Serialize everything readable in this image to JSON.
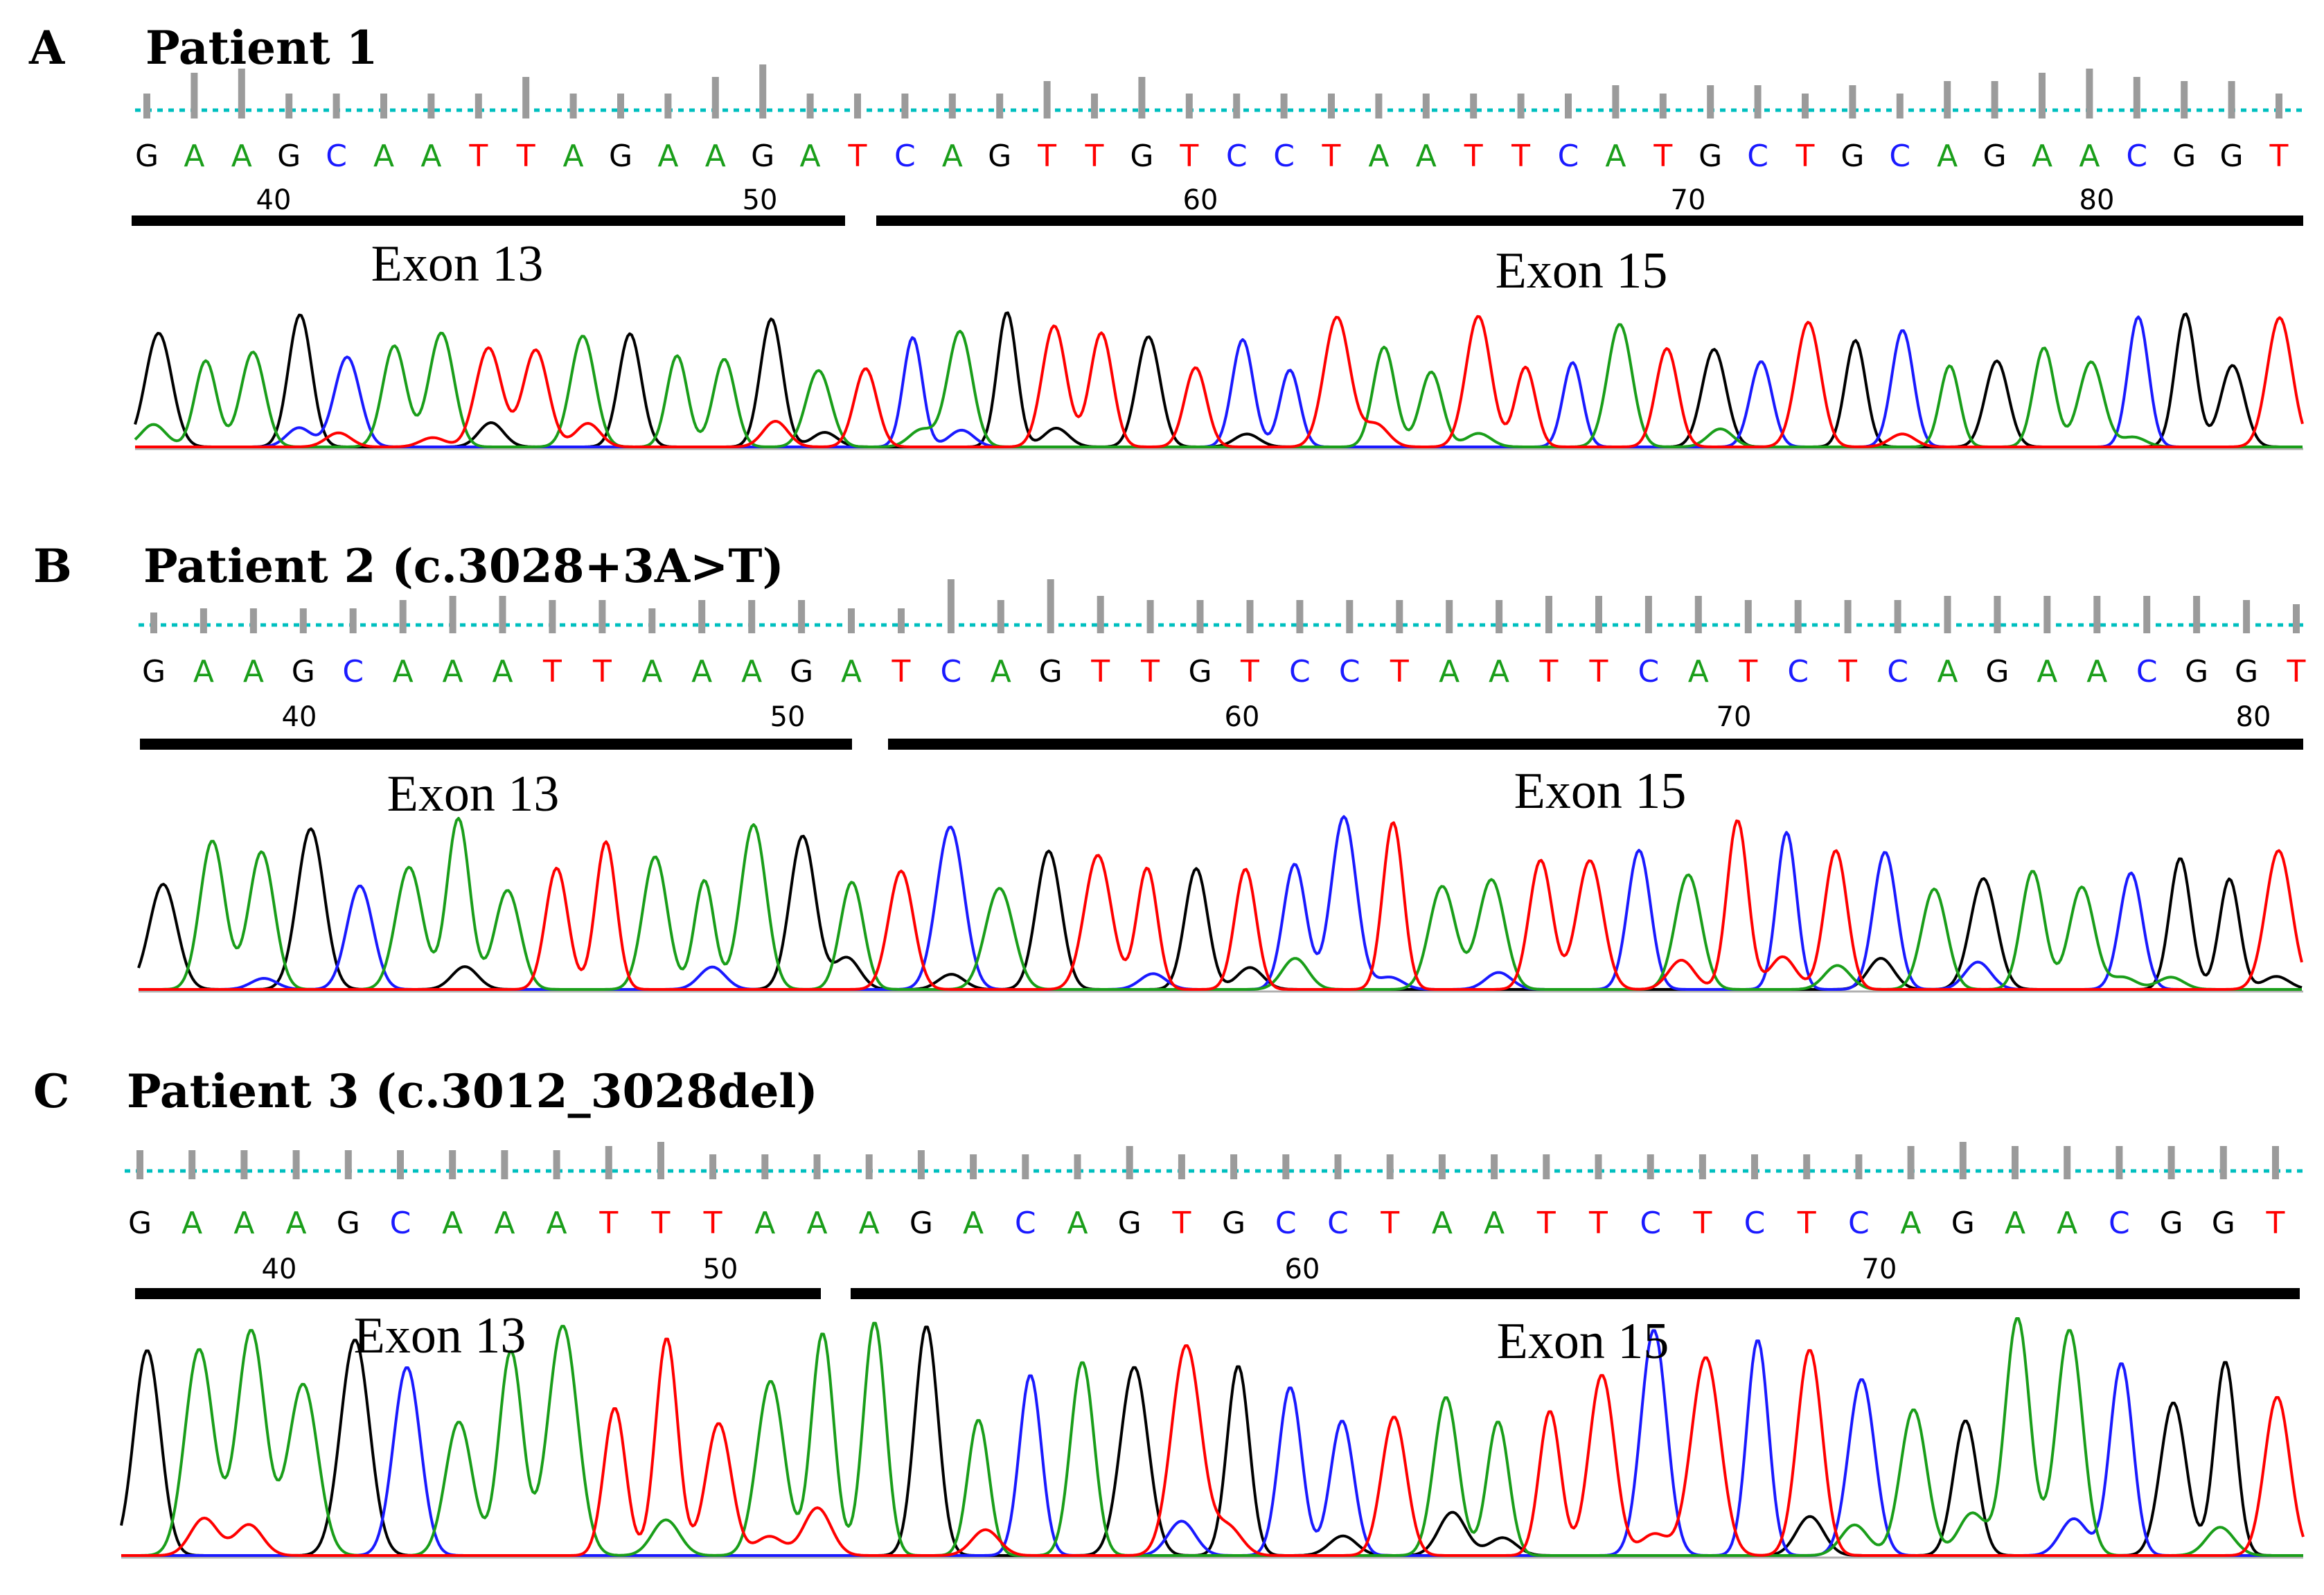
{
  "colors": {
    "A": "#1a9e1a",
    "C": "#1a1aff",
    "G": "#000000",
    "T": "#ff0000",
    "baseline": "#00bfbf",
    "quality": "#9b9b9b",
    "exon_bar": "#000000"
  },
  "panels": [
    {
      "letter": "A",
      "title": "Patient 1",
      "sequence": "GAAGCAATTAGAAGATCAGTTGTCCTAATTCATGCTGCAGAACGGT",
      "position_labels": [
        "40",
        "50",
        "60",
        "70",
        "80"
      ],
      "exons": [
        {
          "label": "Exon 13"
        },
        {
          "label": "Exon 15"
        }
      ],
      "quality": [
        0.3,
        0.8,
        0.9,
        0.3,
        0.3,
        0.3,
        0.3,
        0.3,
        0.7,
        0.3,
        0.3,
        0.3,
        0.7,
        1.0,
        0.3,
        0.3,
        0.3,
        0.3,
        0.3,
        0.6,
        0.3,
        0.7,
        0.3,
        0.3,
        0.3,
        0.3,
        0.3,
        0.3,
        0.3,
        0.3,
        0.3,
        0.5,
        0.3,
        0.5,
        0.5,
        0.3,
        0.5,
        0.3,
        0.6,
        0.6,
        0.8,
        0.9,
        0.7,
        0.6,
        0.6,
        0.3
      ]
    },
    {
      "letter": "B",
      "title": "Patient 2 (c.3028+3A>T)",
      "sequence": "GAAGCAAATTAAAGATCAGTTGTCCTAATTCATCTCAGAACGGT",
      "position_labels": [
        "40",
        "50",
        "60",
        "70",
        "80"
      ],
      "exons": [
        {
          "label": "Exon 13"
        },
        {
          "label": "Exon 15"
        }
      ],
      "quality": [
        0.2,
        0.3,
        0.3,
        0.3,
        0.3,
        0.5,
        0.6,
        0.6,
        0.5,
        0.5,
        0.3,
        0.5,
        0.5,
        0.5,
        0.3,
        0.3,
        1.0,
        0.5,
        1.0,
        0.6,
        0.5,
        0.5,
        0.5,
        0.5,
        0.5,
        0.5,
        0.5,
        0.5,
        0.6,
        0.6,
        0.6,
        0.6,
        0.5,
        0.5,
        0.5,
        0.5,
        0.6,
        0.6,
        0.6,
        0.6,
        0.6,
        0.6,
        0.5,
        0.4
      ]
    },
    {
      "letter": "C",
      "title": "Patient 3 (c.3012_3028del)",
      "sequence": "GAAAGCAAATTTAAAGACAGTGCCTAATTCTCTCAGAACGGT",
      "position_labels": [
        "40",
        "50",
        "60",
        "70"
      ],
      "exons": [
        {
          "label": "Exon 13"
        },
        {
          "label": "Exon 15"
        }
      ],
      "quality": [
        0.4,
        0.4,
        0.4,
        0.4,
        0.4,
        0.4,
        0.4,
        0.4,
        0.4,
        0.5,
        0.6,
        0.3,
        0.3,
        0.3,
        0.3,
        0.4,
        0.3,
        0.3,
        0.3,
        0.5,
        0.3,
        0.3,
        0.3,
        0.3,
        0.3,
        0.3,
        0.3,
        0.3,
        0.3,
        0.3,
        0.3,
        0.3,
        0.3,
        0.3,
        0.5,
        0.6,
        0.5,
        0.5,
        0.5,
        0.5,
        0.5,
        0.5
      ]
    }
  ]
}
